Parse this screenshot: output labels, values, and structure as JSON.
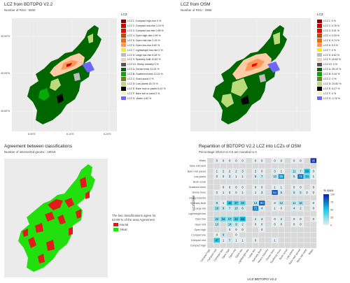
{
  "panels": {
    "bdtopo": {
      "title": "LCZ from   BDTOPO V2.2",
      "subtitle": "Number of RSU : 5930",
      "legend_title": "LCZ",
      "legend": [
        {
          "label": "LCZ 1: Compact high-rise 0 %",
          "color": "#8b0101"
        },
        {
          "label": "LCZ 2: Compact mid-rise 1.19 %",
          "color": "#cc0200"
        },
        {
          "label": "LCZ 3: Compact low-rise 0.55 %",
          "color": "#fc0001"
        },
        {
          "label": "LCZ 4: Open high-rise 0.99 %",
          "color": "#be4c03"
        },
        {
          "label": "LCZ 5: Open mid-rise 2.15 %",
          "color": "#ff6602"
        },
        {
          "label": "LCZ 6: Open low-rise 5.82 %",
          "color": "#ff9856"
        },
        {
          "label": "LCZ 7: Lightweight low-rise 0 %",
          "color": "#fbed08"
        },
        {
          "label": "LCZ 8: Large low-rise 8.48 %",
          "color": "#bcbcba"
        },
        {
          "label": "LCZ 9: Sparsely built 10.82 %",
          "color": "#ffcca7"
        },
        {
          "label": "LCZ 10: Heavy industry 0 %",
          "color": "#57555a"
        },
        {
          "label": "LCZ A: Dense trees 31.02 %",
          "color": "#006700"
        },
        {
          "label": "LCZ B: Scattered trees 12.01 %",
          "color": "#05aa05"
        },
        {
          "label": "LCZ C: Bush,scrub 0 %",
          "color": "#648423"
        },
        {
          "label": "LCZ D: Low plants 16.74 %",
          "color": "#bbdb7a"
        },
        {
          "label": "LCZ E: Bare rock or paved 5.41 %",
          "color": "#010101"
        },
        {
          "label": "LCZ F: Bare soil or sand 0 %",
          "color": "#fdf6ae"
        },
        {
          "label": "LCZ G: Water 4.82 %",
          "color": "#6d67fd"
        }
      ],
      "xticks": [
        "6.00°E",
        "6.10°E",
        "6.20°E"
      ],
      "yticks": [
        "45.90°N",
        "45.95°N",
        "45.85°N"
      ]
    },
    "osm": {
      "title": "LCZ from   OSM",
      "subtitle": "Number of RSU : 2966",
      "legend_title": "LCZ",
      "legend": [
        {
          "label": "LCZ 1: 0 %",
          "color": "#8b0101"
        },
        {
          "label": "LCZ 2: 0.76 %",
          "color": "#cc0200"
        },
        {
          "label": "LCZ 3: 5.01 %",
          "color": "#fc0001"
        },
        {
          "label": "LCZ 4: 0.03 %",
          "color": "#be4c03"
        },
        {
          "label": "LCZ 5: 0.74 %",
          "color": "#ff6602"
        },
        {
          "label": "LCZ 6: 5.9 %",
          "color": "#ff9856"
        },
        {
          "label": "LCZ 7: 0 %",
          "color": "#fbed08"
        },
        {
          "label": "LCZ 8: 8.62 %",
          "color": "#bcbcba"
        },
        {
          "label": "LCZ 9: 18.62 %",
          "color": "#ffcca7"
        },
        {
          "label": "LCZ 10: 0 %",
          "color": "#57555a"
        },
        {
          "label": "LCZ A: 28.19 %",
          "color": "#006700"
        },
        {
          "label": "LCZ B: 0.44 %",
          "color": "#05aa05"
        },
        {
          "label": "LCZ C: 0 %",
          "color": "#648423"
        },
        {
          "label": "LCZ D: 20.82 %",
          "color": "#bbdb7a"
        },
        {
          "label": "LCZ E: 5.27 %",
          "color": "#010101"
        },
        {
          "label": "LCZ F: 0 %",
          "color": "#fdf6ae"
        },
        {
          "label": "LCZ G: 4.76 %",
          "color": "#6d67fd"
        }
      ]
    },
    "agreement": {
      "title": "Agreement between classifications",
      "subtitle": "Number of intersected geoms : 19019",
      "note_line1": "The two classifications agree for",
      "note_line2": "63.99 % of the area Agreement",
      "legend": [
        {
          "label": "FALSE",
          "color": "#e11a1a"
        },
        {
          "label": "TRUE",
          "color": "#22e00e"
        }
      ]
    },
    "repartition": {
      "title": "Repartition of  BDTOPO V2.2 LCZ into LCZs of  OSM",
      "subtitle": "Percentage inferior to 0.5 are rounded to 0",
      "ylabel": "LCZ  OSM",
      "xlabel": "LCZ  BDTOPO V2.2",
      "legend_title": "% area",
      "legend_ticks": [
        "100",
        "75",
        "50",
        "25",
        "0"
      ]
    }
  },
  "chart_data": [
    {
      "type": "heatmap",
      "title": "Repartition of  BDTOPO V2.2 LCZ into LCZs of  OSM",
      "subtitle": "Percentage inferior to 0.5 are rounded to 0",
      "xlabel": "LCZ  BDTOPO V2.2",
      "ylabel": "LCZ  OSM",
      "x_categories": [
        "Compact high",
        "Compact mid",
        "Compact low",
        "Open high",
        "Open mid",
        "Open low",
        "Lightweight low",
        "Large low",
        "Sparsely Built",
        "Heavy industry",
        "Dense trees",
        "Scattered trees",
        "Bush scrub",
        "Low plants",
        "Bare rock paved",
        "Bare soil sand",
        "Water"
      ],
      "y_categories": [
        "Water",
        "Bare soil sand",
        "Bare rock paved",
        "Low plants",
        "Bush scrub",
        "Scattered trees",
        "Dense trees",
        "Heavy industry",
        "Sparsely Built",
        "Large low",
        "Lightweight low",
        "Open low",
        "Open mid",
        "Open high",
        "Compact low",
        "Compact mid",
        "Compact high"
      ],
      "values": [
        [
          null,
          0,
          0,
          0,
          0,
          0,
          null,
          0,
          0,
          null,
          0,
          0,
          null,
          0,
          0,
          null,
          95
        ],
        [
          null,
          null,
          null,
          null,
          null,
          null,
          null,
          null,
          null,
          null,
          null,
          null,
          null,
          null,
          null,
          null,
          null
        ],
        [
          null,
          1,
          2,
          2,
          2,
          3,
          null,
          2,
          0,
          null,
          3,
          1,
          null,
          11,
          7,
          50,
          0
        ],
        [
          null,
          0,
          0,
          3,
          1,
          1,
          null,
          5,
          7,
          null,
          10,
          65,
          null,
          5,
          74,
          34,
          1
        ],
        [
          null,
          null,
          null,
          null,
          null,
          null,
          null,
          null,
          null,
          null,
          null,
          null,
          null,
          null,
          null,
          null,
          null
        ],
        [
          null,
          null,
          0,
          0,
          0,
          0,
          null,
          0,
          0,
          null,
          1,
          1,
          null,
          0,
          0,
          null,
          0
        ],
        [
          null,
          0,
          1,
          0,
          0,
          1,
          null,
          1,
          3,
          null,
          84,
          5,
          null,
          5,
          5,
          0,
          0
        ],
        [
          null,
          null,
          null,
          null,
          null,
          null,
          null,
          null,
          null,
          null,
          null,
          null,
          null,
          null,
          null,
          null,
          null
        ],
        [
          null,
          9,
          1,
          46,
          37,
          32,
          null,
          14,
          80,
          null,
          3,
          12,
          null,
          11,
          16,
          null,
          0
        ],
        [
          null,
          18,
          9,
          7,
          10,
          6,
          null,
          72,
          4,
          null,
          1,
          0,
          null,
          4,
          2,
          null,
          0
        ],
        [
          null,
          null,
          null,
          null,
          null,
          null,
          null,
          null,
          null,
          null,
          null,
          null,
          null,
          null,
          null,
          null,
          null
        ],
        [
          null,
          22,
          34,
          27,
          42,
          55,
          null,
          2,
          3,
          null,
          0,
          2,
          null,
          0,
          0,
          null,
          0
        ],
        [
          null,
          10,
          null,
          14,
          9,
          2,
          null,
          0,
          0,
          null,
          0,
          0,
          null,
          0,
          0,
          null,
          null
        ],
        [
          null,
          null,
          null,
          0,
          0,
          0,
          null,
          null,
          0,
          null,
          null,
          null,
          null,
          null,
          null,
          null,
          null
        ],
        [
          null,
          0,
          9,
          null,
          0,
          null,
          null,
          null,
          null,
          null,
          null,
          null,
          null,
          null,
          null,
          null,
          null
        ],
        [
          null,
          47,
          1,
          7,
          1,
          1,
          null,
          0,
          null,
          null,
          1,
          null,
          null,
          null,
          null,
          null,
          null
        ],
        [
          null,
          null,
          null,
          null,
          null,
          null,
          null,
          null,
          null,
          null,
          null,
          null,
          null,
          null,
          null,
          null,
          null
        ]
      ],
      "colorscale": {
        "min": 0,
        "max": 100,
        "low": "#e8eeef",
        "mid": "#18c9e6",
        "high": "#0d1ea6"
      }
    }
  ]
}
